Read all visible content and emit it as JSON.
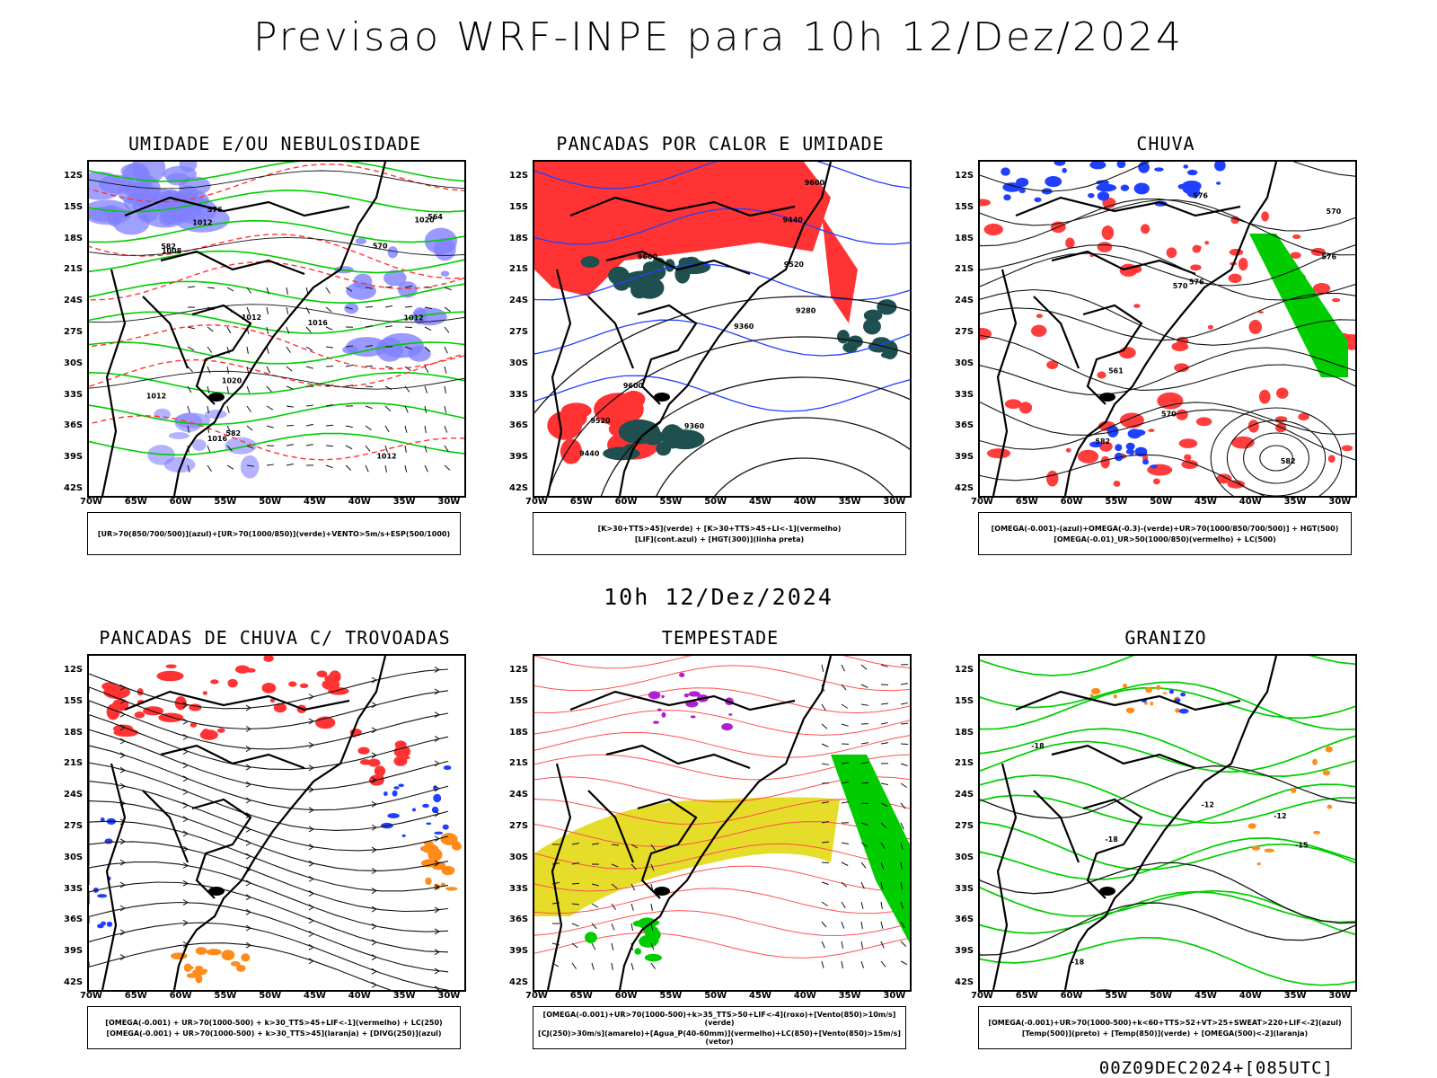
{
  "header": {
    "title": "Previsao WRF-INPE  para 10h 12/Dez/2024"
  },
  "middle_label": "10h 12/Dez/2024",
  "footer": {
    "stamp": "00Z09DEC2024+[085UTC]"
  },
  "axes": {
    "lat_labels": [
      "12S",
      "15S",
      "18S",
      "21S",
      "24S",
      "27S",
      "30S",
      "33S",
      "36S",
      "39S",
      "42S"
    ],
    "lon_labels": [
      "70W",
      "65W",
      "60W",
      "55W",
      "50W",
      "45W",
      "40W",
      "35W",
      "30W"
    ]
  },
  "colors": {
    "humidity_blue": "#8080ff",
    "green": "#00cc00",
    "red": "#ff3333",
    "dark_teal": "#1f4f4f",
    "yellow": "#e6dc2a",
    "orange": "#ff8c1a",
    "purple": "#b020d0",
    "blue": "#2040ff"
  },
  "panels": [
    {
      "title": "UMIDADE E/OU NEBULOSIDADE",
      "legend": [
        "[UR>70(850/700/500)](azul)+[UR>70(1000/850)](verde)+VENTO>5m/s+ESP(500/1000)"
      ],
      "labels": [
        "1012",
        "1012",
        "1012",
        "1012",
        "1012",
        "1008",
        "1016",
        "1016",
        "1020",
        "1020",
        "570",
        "576",
        "582",
        "564",
        "582"
      ]
    },
    {
      "title": "PANCADAS POR CALOR E UMIDADE",
      "legend": [
        "[K>30+TTS>45](verde) + [K>30+TTS>45+LI<-1](vermelho)",
        "[LIF](cont.azul) + [HGT(300)](linha preta)"
      ],
      "labels": [
        "9600",
        "9600",
        "9520",
        "9440",
        "9360",
        "9280",
        "9440",
        "9360",
        "9520",
        "9600"
      ]
    },
    {
      "title": "CHUVA",
      "legend": [
        "[OMEGA(-0.001)-(azul)+OMEGA(-0.3)-(verde)+UR>70(1000/850/700/500)] + HGT(500)",
        "[OMEGA(-0.01)_UR>50(1000/850)(vermelho) + LC(500)"
      ],
      "labels": [
        "582",
        "576",
        "570",
        "576",
        "576",
        "561",
        "570",
        "570",
        "582"
      ]
    },
    {
      "title": "PANCADAS DE CHUVA C/ TROVOADAS",
      "legend": [
        "[OMEGA(-0.001) + UR>70(1000-500) + k>30_TTS>45+LIF<-1](vermelho) + LC(250)",
        "[OMEGA(-0.001) + UR>70(1000-500) + k>30_TTS>45](laranja) + [DIVG(250)](azul)"
      ],
      "labels": []
    },
    {
      "title": "TEMPESTADE",
      "legend": [
        "[OMEGA(-0.001)+UR>70(1000-500)+k>35_TTS>50+LIF<-4](roxo)+[Vento(850)>10m/s](verde)",
        "[CJ(250)>30m/s](amarelo)+[Agua_P(40-60mm)](vermelho)+LC(850)+[Vento(850)>15m/s](vetor)"
      ],
      "labels": []
    },
    {
      "title": "GRANIZO",
      "legend": [
        "[OMEGA(-0.001)+UR>70(1000-500)+k<60+TTS>52+VT>25+SWEAT>220+LIF<-2](azul)",
        "[Temp(500)](preto) + [Temp(850)](verde) + [OMEGA(500)<-2](laranja)"
      ],
      "labels": [
        "-12",
        "-12",
        "-15",
        "-18",
        "-18",
        "-18"
      ]
    }
  ]
}
